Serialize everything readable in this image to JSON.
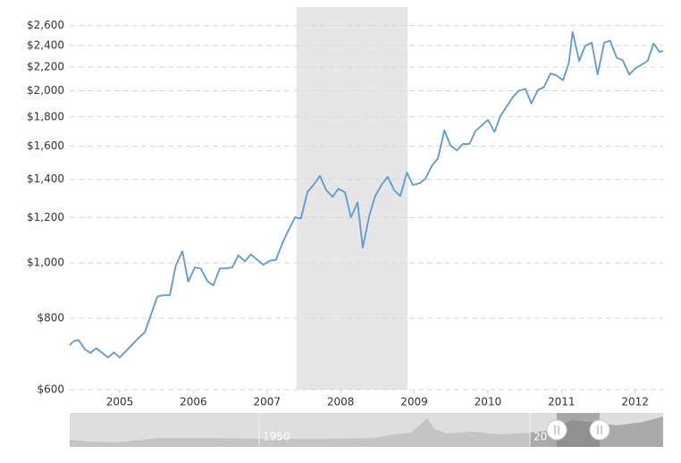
{
  "chart_data": {
    "type": "line",
    "log_y": true,
    "grid": true,
    "ylim": [
      600,
      2800
    ],
    "yticks": [
      {
        "value": 600,
        "label": "$600"
      },
      {
        "value": 800,
        "label": "$800"
      },
      {
        "value": 1000,
        "label": "$1,000"
      },
      {
        "value": 1200,
        "label": "$1,200"
      },
      {
        "value": 1400,
        "label": "$1,400"
      },
      {
        "value": 1600,
        "label": "$1,600"
      },
      {
        "value": 1800,
        "label": "$1,800"
      },
      {
        "value": 2000,
        "label": "$2,000"
      },
      {
        "value": 2200,
        "label": "$2,200"
      },
      {
        "value": 2400,
        "label": "$2,400"
      },
      {
        "value": 2600,
        "label": "$2,600"
      }
    ],
    "xlim": [
      2004.32,
      2012.38
    ],
    "xticks": [
      2005,
      2006,
      2007,
      2008,
      2009,
      2010,
      2011,
      2012
    ],
    "shaded_band": [
      2007.4,
      2008.91
    ],
    "navigator_labels": [
      "1950",
      "20"
    ],
    "x": [
      2004.32,
      2004.37,
      2004.44,
      2004.53,
      2004.6,
      2004.68,
      2004.76,
      2004.84,
      2004.92,
      2005.0,
      2005.08,
      2005.17,
      2005.25,
      2005.34,
      2005.42,
      2005.51,
      2005.59,
      2005.68,
      2005.76,
      2005.85,
      2005.93,
      2006.02,
      2006.1,
      2006.19,
      2006.27,
      2006.36,
      2006.44,
      2006.53,
      2006.61,
      2006.7,
      2006.78,
      2006.87,
      2006.95,
      2007.04,
      2007.12,
      2007.21,
      2007.29,
      2007.38,
      2007.46,
      2007.55,
      2007.63,
      2007.72,
      2007.8,
      2007.89,
      2007.97,
      2008.06,
      2008.14,
      2008.23,
      2008.3,
      2008.39,
      2008.47,
      2008.56,
      2008.64,
      2008.73,
      2008.81,
      2008.9,
      2008.98,
      2009.07,
      2009.15,
      2009.24,
      2009.32,
      2009.41,
      2009.49,
      2009.58,
      2009.66,
      2009.75,
      2009.83,
      2009.92,
      2010.0,
      2010.09,
      2010.17,
      2010.26,
      2010.34,
      2010.42,
      2010.51,
      2010.59,
      2010.68,
      2010.76,
      2010.85,
      2010.93,
      2011.02,
      2011.1,
      2011.15,
      2011.24,
      2011.32,
      2011.41,
      2011.49,
      2011.58,
      2011.66,
      2011.75,
      2011.83,
      2011.92,
      2012.0,
      2012.09,
      2012.17,
      2012.25,
      2012.33,
      2012.38
    ],
    "series": [
      {
        "color": "#5b9bd5",
        "values": [
          718,
          729,
          733,
          705,
          696,
          709,
          696,
          683,
          697,
          683,
          700,
          720,
          738,
          756,
          809,
          873,
          878,
          878,
          988,
          1048,
          927,
          982,
          977,
          929,
          913,
          978,
          978,
          982,
          1031,
          1006,
          1035,
          1012,
          992,
          1009,
          1012,
          1083,
          1139,
          1201,
          1196,
          1331,
          1368,
          1419,
          1343,
          1304,
          1348,
          1328,
          1201,
          1276,
          1063,
          1211,
          1309,
          1372,
          1414,
          1338,
          1309,
          1438,
          1368,
          1378,
          1402,
          1479,
          1522,
          1706,
          1605,
          1573,
          1614,
          1614,
          1700,
          1741,
          1779,
          1694,
          1807,
          1881,
          1950,
          2000,
          2014,
          1900,
          2007,
          2028,
          2143,
          2128,
          2086,
          2239,
          2535,
          2255,
          2395,
          2428,
          2135,
          2428,
          2446,
          2283,
          2262,
          2135,
          2187,
          2222,
          2255,
          2419,
          2338,
          2346
        ]
      }
    ]
  }
}
